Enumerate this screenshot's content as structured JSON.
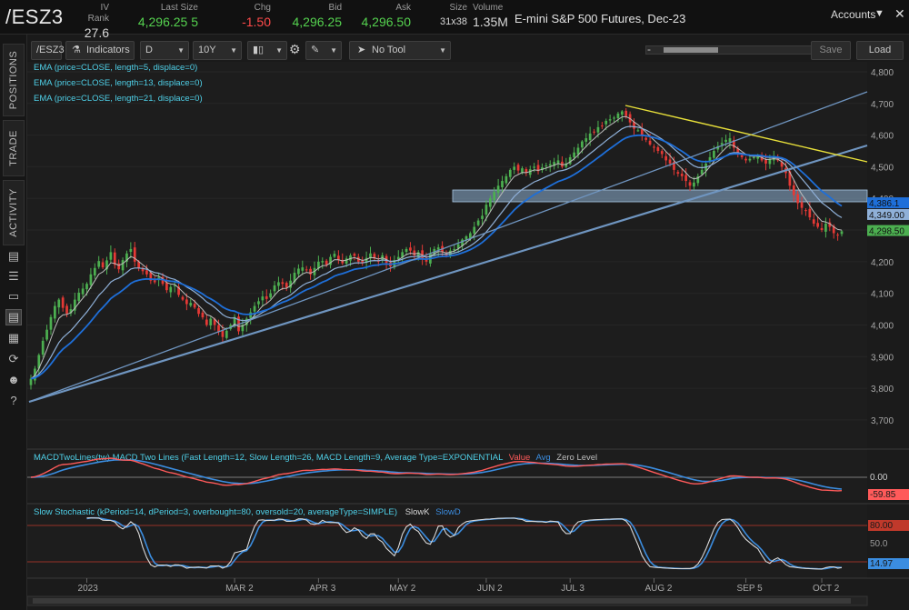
{
  "header": {
    "symbol": "/ESZ3",
    "fields": [
      {
        "key": "iv_rank",
        "label": "IV Rank",
        "value": "27.6",
        "tone": "plain"
      },
      {
        "key": "last_size",
        "label": "Last Size",
        "value": "4,296.25 5",
        "tone": "green"
      },
      {
        "key": "chg",
        "label": "Chg",
        "value": "-1.50",
        "tone": "red"
      },
      {
        "key": "bid",
        "label": "Bid",
        "value": "4,296.25",
        "tone": "green"
      },
      {
        "key": "ask",
        "label": "Ask",
        "value": "4,296.50",
        "tone": "green"
      },
      {
        "key": "size",
        "label": "Size",
        "value": "31x38",
        "tone": "plain"
      },
      {
        "key": "volume",
        "label": "Volume",
        "value": "1.35M",
        "tone": "plain"
      }
    ],
    "description": "E-mini S&P 500 Futures, Dec-23",
    "accounts_label": "Accounts",
    "accounts_icon": "chevron-down-icon",
    "close_icon": "close-icon"
  },
  "left_tabs": [
    "POSITIONS",
    "TRADE",
    "ACTIVITY"
  ],
  "left_icons": [
    "list-icon",
    "grid-list-icon",
    "layers-icon",
    "chart-icon",
    "tiles-icon",
    "history-icon",
    "people-icon",
    "help-icon"
  ],
  "toolbar": {
    "symbol_box": "/ESZ3",
    "indicators_label": "Indicators",
    "interval": "D",
    "range": "10Y",
    "chart_style_icon": "candlestick-icon",
    "settings_icon": "gear-icon",
    "drawing_icon": "drawing-tools-icon",
    "tool_select": "No Tool",
    "save_label": "Save",
    "load_label": "Load",
    "scroll_minus": "-",
    "scroll_plus": "+"
  },
  "colors": {
    "up_candle": "#4caf50",
    "down_candle": "#e53935",
    "ema5": "#bdbdbd",
    "ema13": "#8fb0d8",
    "ema21": "#1e6fd9",
    "trendline": "#6f95c0",
    "resistance": "#e8e03a",
    "zone": "#8fb3d6",
    "macd_value": "#ff5a5a",
    "macd_avg": "#3b8de0",
    "stoch_k": "#d8d8d8",
    "stoch_d": "#3b8de0",
    "overbought": "#c0392b",
    "indicator_text": "#4fd0e8"
  },
  "chart_data": [
    {
      "type": "candlestick",
      "studies": [
        "EMA (price=CLOSE, length=5, displace=0)",
        "EMA (price=CLOSE, length=13, displace=0)",
        "EMA (price=CLOSE, length=21, displace=0)"
      ],
      "y_ticks": [
        "4,800",
        "4,700",
        "4,600",
        "4,500",
        "4,400",
        "4,300",
        "4,200",
        "4,100",
        "4,000",
        "3,900",
        "3,800",
        "3,700"
      ],
      "ylim": [
        3625,
        4820
      ],
      "x_ticks": [
        "2023",
        "MAR 2",
        "APR 3",
        "MAY 2",
        "JUN 2",
        "JUL 3",
        "AUG 2",
        "SEP 5",
        "OCT 2"
      ],
      "x_tick_index": [
        14,
        51,
        72,
        92,
        114,
        135,
        156,
        179,
        198
      ],
      "price_tags": [
        {
          "label": "4,386.1",
          "value": 4386.1,
          "color": "#1e6fd9"
        },
        {
          "label": "4,349.00",
          "value": 4349.0,
          "color": "#8fb0d8"
        },
        {
          "label": "4,298.50",
          "value": 4298.5,
          "color": "#4caf50"
        }
      ],
      "closes": [
        3830,
        3862,
        3905,
        3950,
        3985,
        4025,
        4060,
        4080,
        4054,
        4036,
        4050,
        4080,
        4102,
        4115,
        4130,
        4160,
        4180,
        4202,
        4182,
        4204,
        4230,
        4190,
        4176,
        4205,
        4226,
        4240,
        4200,
        4180,
        4170,
        4160,
        4140,
        4135,
        4150,
        4130,
        4110,
        4120,
        4125,
        4095,
        4080,
        4066,
        4070,
        4055,
        4035,
        4024,
        4000,
        4020,
        4000,
        3978,
        3962,
        3982,
        4000,
        4025,
        3980,
        4000,
        4020,
        4040,
        4060,
        4075,
        4090,
        4082,
        4100,
        4125,
        4135,
        4130,
        4118,
        4140,
        4165,
        4178,
        4182,
        4175,
        4160,
        4180,
        4200,
        4202,
        4190,
        4215,
        4225,
        4205,
        4195,
        4210,
        4220,
        4218,
        4200,
        4195,
        4212,
        4226,
        4210,
        4200,
        4220,
        4196,
        4185,
        4205,
        4215,
        4230,
        4240,
        4235,
        4220,
        4230,
        4210,
        4200,
        4225,
        4240,
        4245,
        4230,
        4220,
        4235,
        4240,
        4255,
        4270,
        4280,
        4290,
        4310,
        4330,
        4345,
        4380,
        4400,
        4420,
        4440,
        4455,
        4470,
        4490,
        4500,
        4488,
        4495,
        4480,
        4492,
        4500,
        4486,
        4498,
        4504,
        4508,
        4515,
        4520,
        4500,
        4510,
        4530,
        4545,
        4560,
        4580,
        4590,
        4605,
        4610,
        4625,
        4630,
        4645,
        4650,
        4655,
        4668,
        4675,
        4660,
        4640,
        4620,
        4615,
        4598,
        4585,
        4570,
        4560,
        4550,
        4540,
        4520,
        4510,
        4490,
        4478,
        4470,
        4455,
        4440,
        4450,
        4470,
        4490,
        4510,
        4530,
        4550,
        4565,
        4575,
        4585,
        4590,
        4560,
        4540,
        4530,
        4520,
        4525,
        4530,
        4535,
        4520,
        4510,
        4525,
        4530,
        4520,
        4500,
        4480,
        4440,
        4410,
        4385,
        4370,
        4360,
        4340,
        4320,
        4310,
        4300,
        4320,
        4310,
        4290,
        4285,
        4296
      ]
    },
    {
      "type": "line",
      "title": "MACDTwoLines(tw) MACD Two Lines (Fast Length=12, Slow Length=26, MACD Length=9, Average Type=EXPONENTIAL",
      "series": [
        {
          "name": "Value"
        },
        {
          "name": "Avg"
        },
        {
          "name": "Zero Level"
        }
      ],
      "tags": [
        "0.00",
        "-59.85"
      ]
    },
    {
      "type": "line",
      "title": "Slow Stochastic (kPeriod=14, dPeriod=3, overbought=80, oversold=20, averageType=SIMPLE)",
      "series": [
        {
          "name": "SlowK"
        },
        {
          "name": "SlowD"
        }
      ],
      "levels": [
        80,
        50,
        20
      ],
      "tags": [
        "80.00",
        "50.0",
        "14.97"
      ]
    }
  ]
}
